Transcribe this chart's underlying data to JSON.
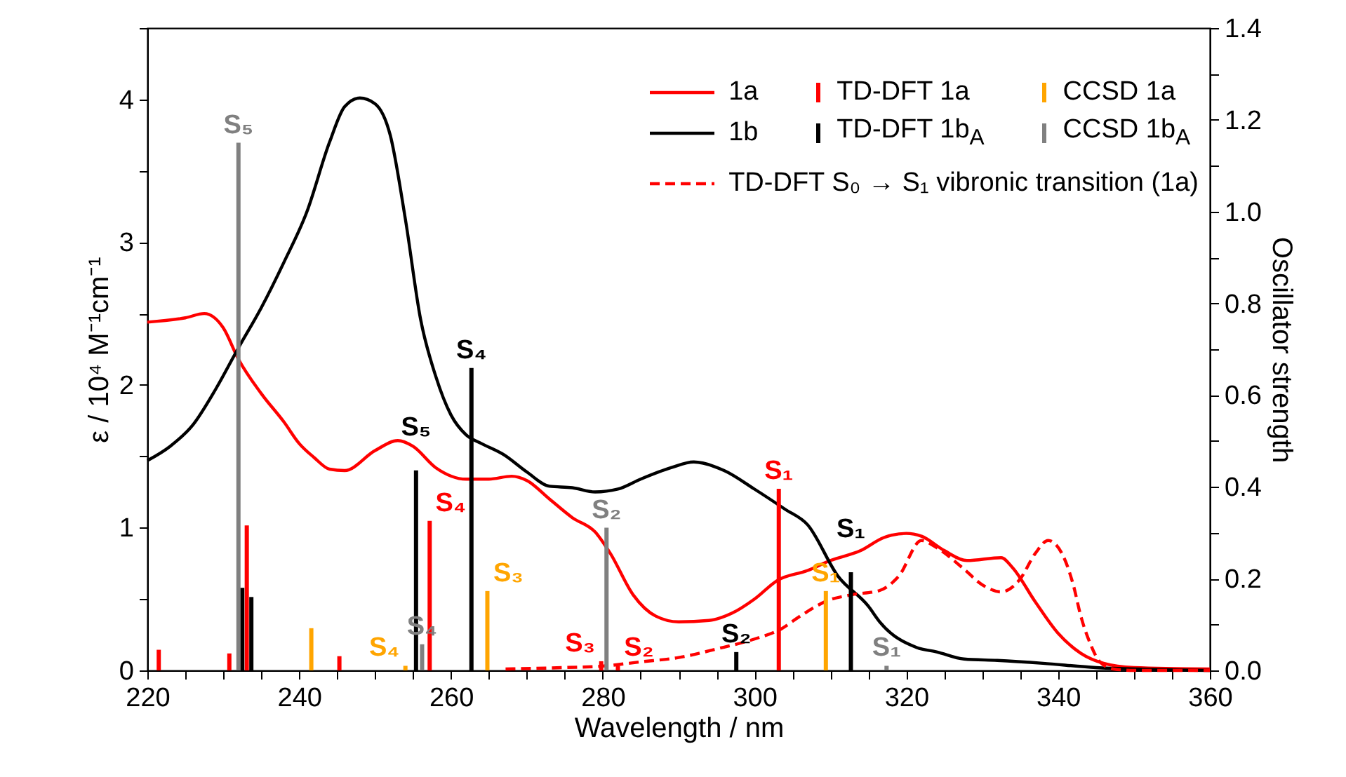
{
  "chart_data": {
    "type": "line",
    "xlabel": "Wavelength  /  nm",
    "ylabel": "ε  /  10⁴ M⁻¹cm⁻¹",
    "y2label": "Oscillator strength",
    "xlim": [
      220,
      360
    ],
    "ylim": [
      0,
      4.5
    ],
    "y2lim": [
      0,
      1.4
    ],
    "xticks": [
      220,
      {
        "value": 225,
        "label": null
      },
      {
        "value": 230,
        "label": null
      },
      {
        "value": 235,
        "label": null
      },
      240,
      {
        "value": 245,
        "label": null
      },
      {
        "value": 250,
        "label": null
      },
      {
        "value": 255,
        "label": null
      },
      260,
      {
        "value": 265,
        "label": null
      },
      {
        "value": 270,
        "label": null
      },
      {
        "value": 275,
        "label": null
      },
      280,
      {
        "value": 285,
        "label": null
      },
      {
        "value": 290,
        "label": null
      },
      {
        "value": 295,
        "label": null
      },
      300,
      {
        "value": 305,
        "label": null
      },
      {
        "value": 310,
        "label": null
      },
      {
        "value": 315,
        "label": null
      },
      320,
      {
        "value": 325,
        "label": null
      },
      {
        "value": 330,
        "label": null
      },
      {
        "value": 335,
        "label": null
      },
      340,
      {
        "value": 345,
        "label": null
      },
      {
        "value": 350,
        "label": null
      },
      {
        "value": 355,
        "label": null
      },
      360
    ],
    "yticks": [
      0,
      {
        "value": 0.5,
        "label": null
      },
      1,
      {
        "value": 1.5,
        "label": null
      },
      2,
      {
        "value": 2.5,
        "label": null
      },
      3,
      {
        "value": 3.5,
        "label": null
      },
      4,
      {
        "value": 4.5,
        "label": null
      }
    ],
    "y2ticks": [
      {
        "value": 0,
        "label": "0.0"
      },
      {
        "value": 0.1,
        "label": null
      },
      {
        "value": 0.2,
        "label": "0.2"
      },
      {
        "value": 0.3,
        "label": null
      },
      {
        "value": 0.4,
        "label": "0.4"
      },
      {
        "value": 0.5,
        "label": null
      },
      {
        "value": 0.6,
        "label": "0.6"
      },
      {
        "value": 0.7,
        "label": null
      },
      {
        "value": 0.8,
        "label": "0.8"
      },
      {
        "value": 0.9,
        "label": null
      },
      {
        "value": 1.0,
        "label": "1.0"
      },
      {
        "value": 1.1,
        "label": null
      },
      {
        "value": 1.2,
        "label": "1.2"
      },
      {
        "value": 1.3,
        "label": null
      },
      {
        "value": 1.4,
        "label": "1.4"
      }
    ],
    "legend": "top right",
    "series": [
      {
        "name": "1a",
        "color": "#ff0000",
        "x": [
          220,
          225,
          227.5,
          230,
          232,
          235,
          238,
          240,
          242,
          244,
          246,
          250,
          253,
          255,
          258,
          262,
          265,
          268,
          270,
          273,
          276,
          279,
          281,
          284,
          287,
          290,
          294,
          297,
          300,
          303,
          307,
          310,
          314,
          317,
          320,
          322,
          325,
          328,
          332.5,
          334,
          337,
          340,
          343,
          346,
          350,
          360
        ],
        "values": [
          2.44,
          2.47,
          2.5,
          2.4,
          2.18,
          1.94,
          1.74,
          1.59,
          1.49,
          1.41,
          1.4,
          1.54,
          1.61,
          1.57,
          1.42,
          1.34,
          1.34,
          1.36,
          1.33,
          1.2,
          1.07,
          0.97,
          0.82,
          0.53,
          0.38,
          0.34,
          0.35,
          0.4,
          0.5,
          0.63,
          0.7,
          0.77,
          0.84,
          0.93,
          0.96,
          0.94,
          0.84,
          0.77,
          0.79,
          0.72,
          0.48,
          0.26,
          0.12,
          0.05,
          0.02,
          0.01
        ]
      },
      {
        "name": "1b",
        "color": "#000000",
        "x": [
          220,
          223,
          226,
          229,
          232,
          235,
          238,
          241,
          244,
          246,
          248,
          250,
          252,
          254,
          256,
          258,
          260,
          262,
          264,
          267,
          270,
          273,
          276,
          279,
          282,
          285,
          289,
          292,
          296,
          300,
          304,
          307,
          311,
          315,
          316.5,
          321.4,
          324,
          327.6,
          332,
          338,
          345,
          360
        ],
        "values": [
          1.47,
          1.57,
          1.72,
          1.97,
          2.26,
          2.54,
          2.86,
          3.21,
          3.7,
          3.95,
          4.01,
          3.97,
          3.75,
          3.16,
          2.46,
          2.06,
          1.79,
          1.65,
          1.59,
          1.51,
          1.39,
          1.29,
          1.28,
          1.25,
          1.27,
          1.34,
          1.42,
          1.46,
          1.4,
          1.27,
          1.13,
          1.02,
          0.66,
          0.45,
          0.34,
          0.16,
          0.13,
          0.08,
          0.07,
          0.05,
          0.02,
          0.0
        ]
      },
      {
        "name": "TD-DFT S₀ → S₁ vibronic transition (1a)",
        "line_style": "dashed",
        "color": "#ff0000",
        "x": [
          267.2,
          275,
          280,
          285,
          290,
          295,
          300,
          303.5,
          306,
          309.7,
          312.8,
          316.5,
          319,
          322,
          324,
          327.6,
          330,
          332.5,
          335,
          337,
          338.7,
          340.5,
          342,
          343,
          344.3,
          345.5,
          347.3,
          350,
          360
        ],
        "values": [
          0.01,
          0.02,
          0.03,
          0.06,
          0.09,
          0.15,
          0.22,
          0.29,
          0.38,
          0.49,
          0.53,
          0.56,
          0.66,
          0.91,
          0.86,
          0.71,
          0.6,
          0.55,
          0.64,
          0.82,
          0.91,
          0.82,
          0.6,
          0.38,
          0.18,
          0.06,
          0.01,
          0.0,
          0.0
        ]
      },
      {
        "name": "TD-DFT 1a",
        "type": "bar",
        "axis": "y2",
        "color": "#ff0000",
        "x": [
          221.5,
          230.8,
          233.1,
          245.3,
          257.2,
          279.8,
          282.0,
          303.2
        ],
        "values": [
          0.045,
          0.037,
          0.316,
          0.031,
          0.326,
          0.02,
          0.01,
          0.396
        ],
        "value_labels": [
          null,
          null,
          null,
          null,
          "S₄",
          "S₃",
          "S₂",
          "S₁"
        ]
      },
      {
        "name": "TD-DFT 1b$_{A}$",
        "type": "bar",
        "axis": "y2",
        "color": "#000000",
        "x": [
          232.5,
          233.7,
          255.4,
          262.7,
          297.6,
          312.7
        ],
        "values": [
          0.18,
          0.16,
          0.436,
          0.659,
          0.04,
          0.214
        ],
        "value_labels": [
          null,
          null,
          "S₅",
          "S₄",
          "S₂",
          "S₁"
        ]
      },
      {
        "name": "CCSD 1a",
        "type": "bar",
        "axis": "y2",
        "color": "#ffa500",
        "x": [
          241.6,
          254.0,
          264.8,
          309.4
        ],
        "values": [
          0.092,
          0.01,
          0.173,
          0.173
        ],
        "value_labels": [
          null,
          "S₄",
          "S₃",
          "S₁"
        ]
      },
      {
        "name": "CCSD 1b$_{A}$",
        "type": "bar",
        "axis": "y2",
        "color": "#808080",
        "x": [
          232.0,
          256.2,
          280.5,
          317.4
        ],
        "values": [
          1.15,
          0.057,
          0.311,
          0.01
        ],
        "value_labels": [
          "S₅",
          "S₄",
          "S₂",
          "S₁"
        ]
      }
    ]
  }
}
